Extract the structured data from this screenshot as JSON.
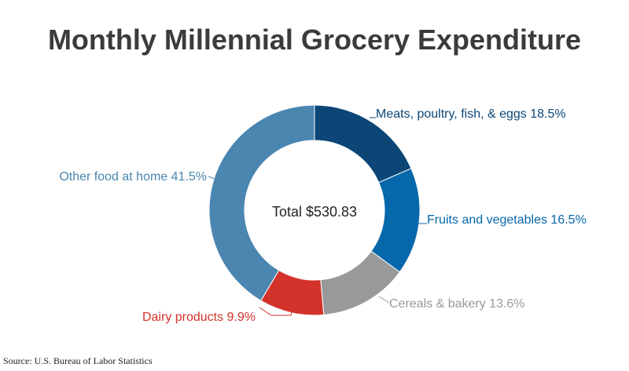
{
  "chart_data": {
    "type": "pie",
    "title": "Monthly Millennial Grocery Expenditure",
    "center_label": "Total $530.83",
    "slices": [
      {
        "label": "Meats, poultry, fish, & eggs 18.5%",
        "value": 18.5,
        "color": "#0b4677"
      },
      {
        "label": "Fruits and vegetables 16.5%",
        "value": 16.5,
        "color": "#0767ab"
      },
      {
        "label": "Cereals & bakery 13.6%",
        "value": 13.6,
        "color": "#999999"
      },
      {
        "label": "Dairy products 9.9%",
        "value": 9.9,
        "color": "#d3322b"
      },
      {
        "label": "Other food at home 41.5%",
        "value": 41.5,
        "color": "#4a86b0"
      }
    ]
  },
  "source": "Source: U.S. Bureau of Labor Statistics"
}
